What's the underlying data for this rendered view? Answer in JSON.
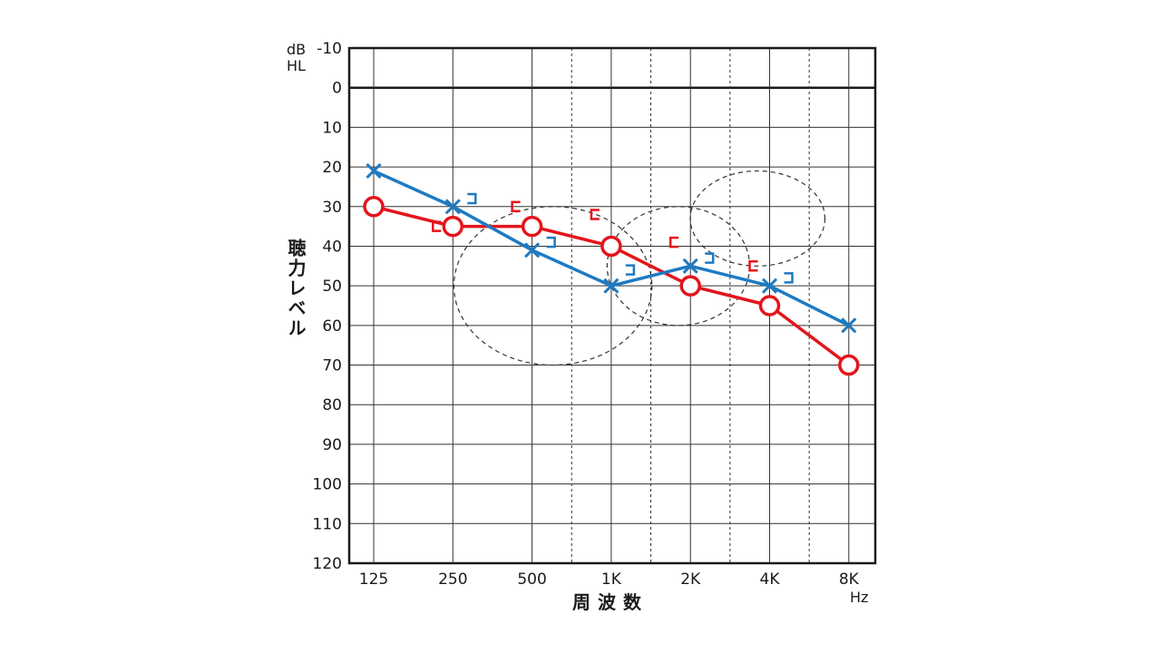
{
  "chart_data": {
    "type": "line",
    "y_unit": [
      "dB",
      "HL"
    ],
    "x_unit": "Hz",
    "xlabel": "周波数",
    "ylabel": "聴力レベル",
    "categories": [
      "125",
      "250",
      "500",
      "1K",
      "2K",
      "4K",
      "8K"
    ],
    "y_ticks": [
      "-10",
      "0",
      "10",
      "20",
      "30",
      "40",
      "50",
      "60",
      "70",
      "80",
      "90",
      "100",
      "110",
      "120"
    ],
    "ylim": [
      -10,
      120
    ],
    "y_inverted": true,
    "grid": true,
    "half_octave_dashed_lines": true,
    "series": [
      {
        "color": "#e3151b",
        "marker": "circle",
        "values": [
          30,
          35,
          35,
          40,
          50,
          55,
          70
        ],
        "bone_marks": [
          null,
          35,
          30,
          32,
          39,
          45,
          null
        ],
        "bone_symbol": "["
      },
      {
        "color": "#1e7ac2",
        "marker": "x",
        "values": [
          21,
          30,
          41,
          50,
          45,
          50,
          60
        ],
        "bone_marks": [
          null,
          28,
          39,
          46,
          43,
          48,
          null
        ],
        "bone_symbol": "]"
      }
    ],
    "regions": [
      {
        "cx_freq": 600,
        "cy": 50,
        "rx_octaves": 1.25,
        "ry": 20
      },
      {
        "cx_freq": 1800,
        "cy": 45,
        "rx_octaves": 0.9,
        "ry": 15
      },
      {
        "cx_freq": 3600,
        "cy": 33,
        "rx_octaves": 0.85,
        "ry": 12
      }
    ],
    "colors": {
      "axis": "#1a1a1a",
      "grid": "#333333",
      "region": "#333333"
    }
  }
}
